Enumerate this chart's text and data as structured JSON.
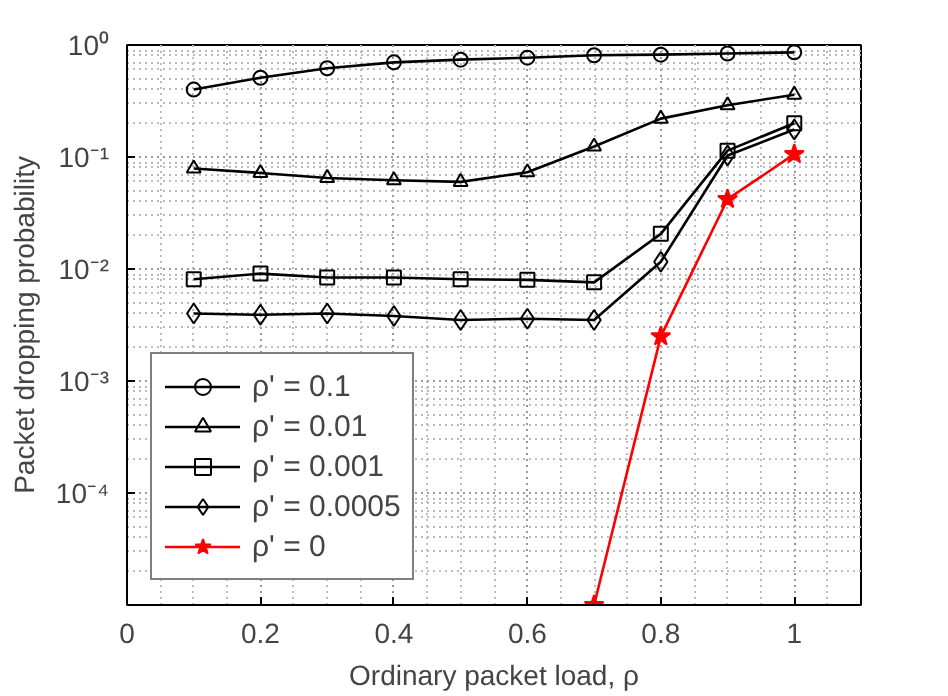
{
  "chart_data": {
    "type": "line",
    "xlabel": "Ordinary packet load, ρ",
    "ylabel": "Packet dropping probability",
    "x": [
      0.1,
      0.2,
      0.3,
      0.4,
      0.5,
      0.6,
      0.7,
      0.8,
      0.9,
      1.0
    ],
    "series": [
      {
        "name": "ρ' = 0.1",
        "color": "#000000",
        "marker": "circle",
        "values": [
          0.4,
          0.51,
          0.62,
          0.7,
          0.74,
          0.77,
          0.81,
          0.82,
          0.84,
          0.86
        ]
      },
      {
        "name": "ρ' = 0.01",
        "color": "#000000",
        "marker": "triangle",
        "values": [
          0.079,
          0.072,
          0.065,
          0.062,
          0.06,
          0.073,
          0.124,
          0.22,
          0.29,
          0.36
        ]
      },
      {
        "name": "ρ' = 0.001",
        "color": "#000000",
        "marker": "square",
        "values": [
          0.0081,
          0.0091,
          0.0084,
          0.0084,
          0.0081,
          0.008,
          0.0076,
          0.0206,
          0.114,
          0.2
        ]
      },
      {
        "name": "ρ' = 0.0005",
        "color": "#000000",
        "marker": "diamond",
        "values": [
          0.004,
          0.0039,
          0.004,
          0.0038,
          0.0035,
          0.0036,
          0.0035,
          0.0116,
          0.103,
          0.176
        ]
      },
      {
        "name": "ρ' = 0",
        "color": "#ff0000",
        "marker": "star",
        "values": [
          null,
          null,
          null,
          null,
          null,
          null,
          1e-05,
          0.0025,
          0.042,
          0.106
        ]
      }
    ],
    "log": "y",
    "xlim": [
      0,
      1.1
    ],
    "ylim": [
      1e-05,
      1
    ],
    "xticks": [
      0,
      0.2,
      0.4,
      0.6,
      0.8,
      1
    ],
    "yticks": [
      {
        "value": 1e-05,
        "label": null
      },
      {
        "value": 0.0001,
        "label": "10⁻⁴"
      },
      {
        "value": 0.001,
        "label": "10⁻³"
      },
      {
        "value": 0.01,
        "label": "10⁻²"
      },
      {
        "value": 0.1,
        "label": "10⁻¹"
      },
      {
        "value": 1,
        "label": "10⁰"
      }
    ],
    "grid": true,
    "legend": "bottom left",
    "line_style": "solid"
  }
}
